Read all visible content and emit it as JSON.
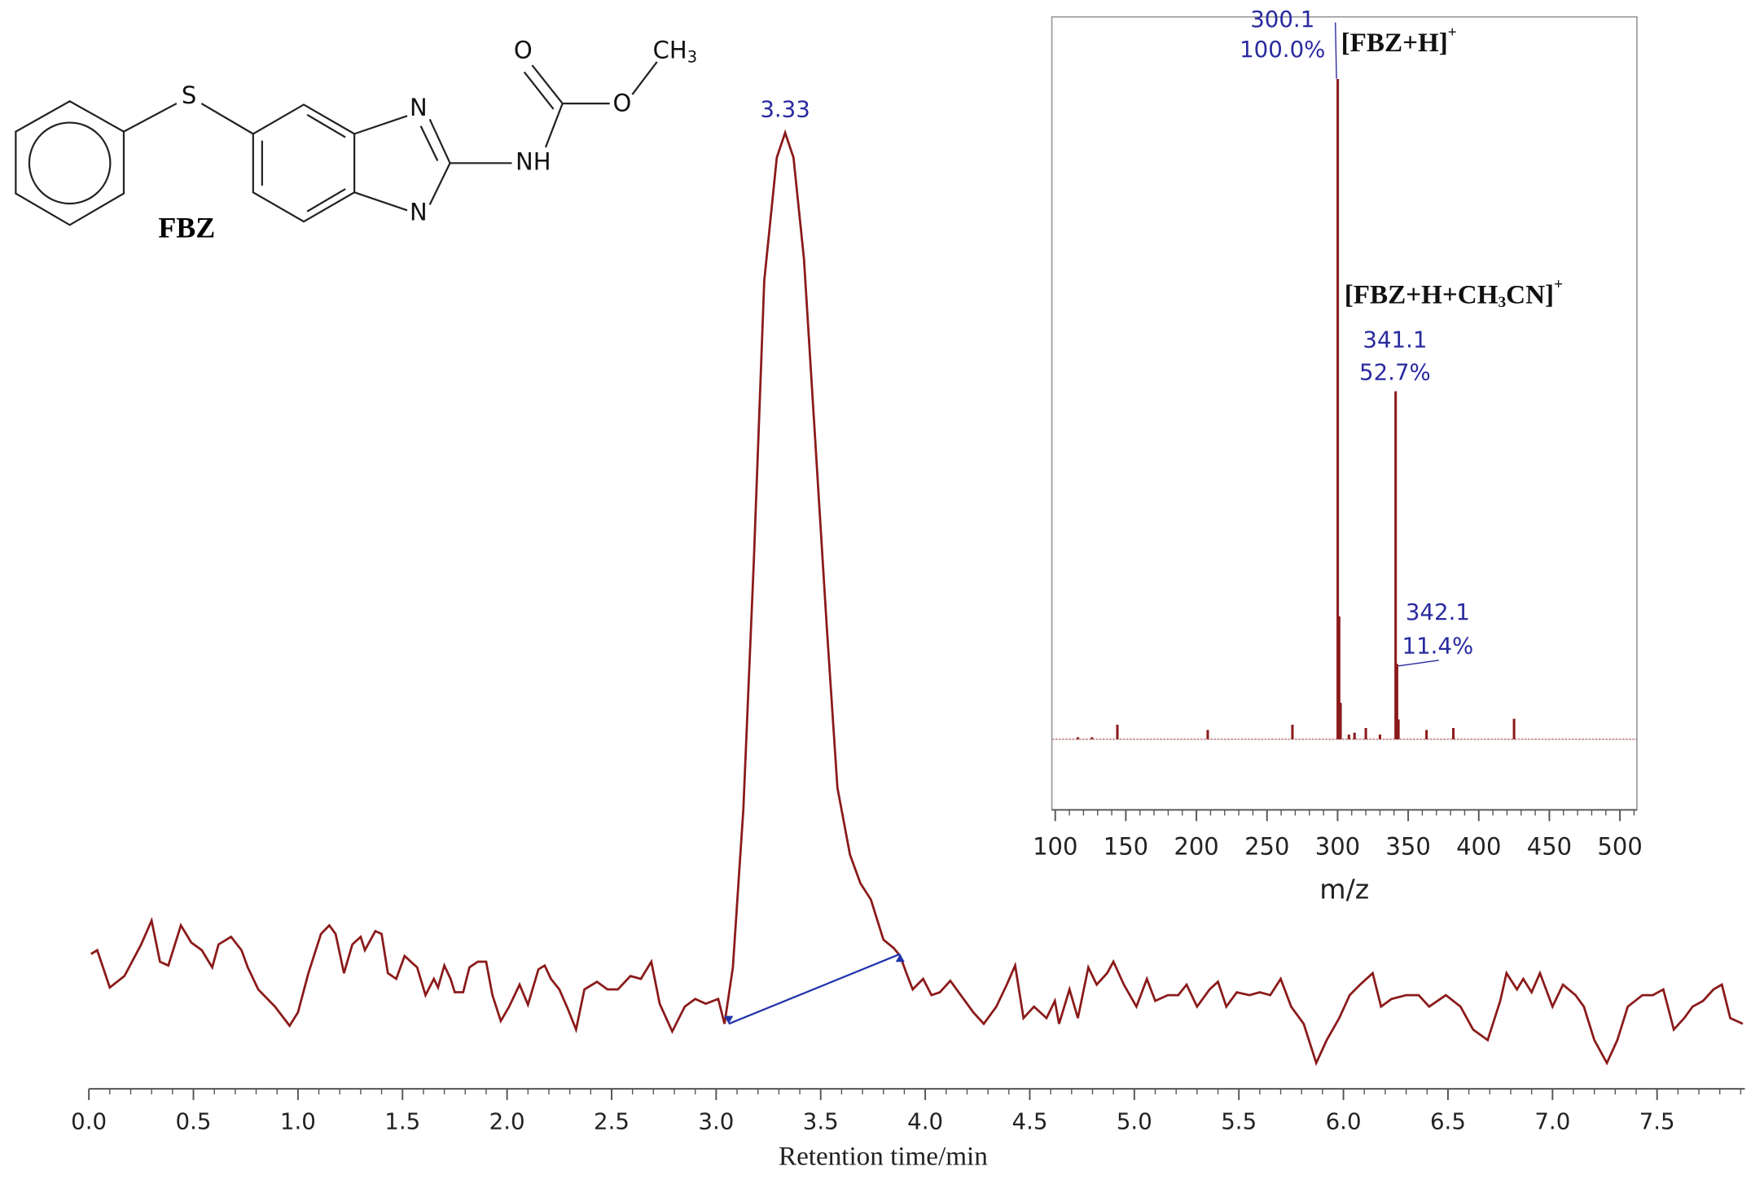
{
  "chart_data": [
    {
      "type": "line",
      "xlabel": "Retention time/min",
      "xlim": [
        0,
        7.92
      ],
      "ylim": [
        0,
        100
      ],
      "xminor": 0.1,
      "xticks": [
        {
          "value": 0,
          "label": "0.0"
        },
        0.5,
        {
          "value": 1,
          "label": "1.0"
        },
        1.5,
        {
          "value": 2,
          "label": "2.0"
        },
        2.5,
        {
          "value": 3,
          "label": "3.0"
        },
        3.5,
        {
          "value": 4,
          "label": "4.0"
        },
        4.5,
        {
          "value": 5,
          "label": "5.0"
        },
        5.5,
        {
          "value": 6,
          "label": "6.0"
        },
        6.5,
        {
          "value": 7,
          "label": "7.0"
        },
        7.5
      ],
      "peak_index": 74,
      "series": [
        {
          "color": "#8b1a1a",
          "x": [
            0.01,
            0.04,
            0.1,
            0.17,
            0.25,
            0.3,
            0.34,
            0.38,
            0.44,
            0.49,
            0.54,
            0.59,
            0.62,
            0.68,
            0.73,
            0.76,
            0.81,
            0.89,
            0.96,
            1.0,
            1.05,
            1.11,
            1.15,
            1.18,
            1.22,
            1.26,
            1.3,
            1.32,
            1.37,
            1.4,
            1.43,
            1.47,
            1.51,
            1.57,
            1.61,
            1.65,
            1.67,
            1.7,
            1.73,
            1.75,
            1.79,
            1.82,
            1.86,
            1.9,
            1.93,
            1.97,
            2.01,
            2.06,
            2.1,
            2.15,
            2.18,
            2.21,
            2.25,
            2.29,
            2.33,
            2.37,
            2.43,
            2.48,
            2.53,
            2.59,
            2.64,
            2.69,
            2.73,
            2.79,
            2.85,
            2.9,
            2.95,
            3.01,
            3.04,
            3.08,
            3.13,
            3.18,
            3.23,
            3.29,
            3.33,
            3.37,
            3.42,
            3.47,
            3.53,
            3.58,
            3.64,
            3.69,
            3.74,
            3.8,
            3.85,
            3.88,
            3.91,
            3.94,
            3.99,
            4.03,
            4.07,
            4.12,
            4.17,
            4.23,
            4.28,
            4.34,
            4.39,
            4.43,
            4.47,
            4.52,
            4.58,
            4.62,
            4.64,
            4.69,
            4.73,
            4.78,
            4.82,
            4.87,
            4.9,
            4.95,
            5.01,
            5.06,
            5.1,
            5.16,
            5.21,
            5.25,
            5.3,
            5.36,
            5.4,
            5.44,
            5.49,
            5.55,
            5.6,
            5.65,
            5.7,
            5.75,
            5.81,
            5.87,
            5.92,
            5.98,
            6.03,
            6.08,
            6.14,
            6.18,
            6.23,
            6.3,
            6.36,
            6.41,
            6.49,
            6.56,
            6.62,
            6.69,
            6.75,
            6.78,
            6.83,
            6.86,
            6.9,
            6.94,
            7.0,
            7.05,
            7.11,
            7.15,
            7.2,
            7.26,
            7.31,
            7.36,
            7.43,
            7.48,
            7.53,
            7.58,
            7.63,
            7.67,
            7.72,
            7.77,
            7.81,
            7.85,
            7.91
          ],
          "values": [
            14.1,
            14.5,
            10.6,
            11.8,
            15.1,
            17.6,
            13.3,
            12.9,
            17.1,
            15.3,
            14.5,
            12.7,
            15.1,
            15.9,
            14.5,
            12.7,
            10.4,
            8.6,
            6.6,
            8.0,
            12.1,
            16.2,
            17.1,
            16.2,
            12.1,
            15.1,
            15.9,
            14.5,
            16.5,
            16.2,
            12.1,
            11.5,
            13.9,
            12.7,
            9.8,
            11.5,
            10.6,
            12.9,
            11.5,
            10.1,
            10.1,
            12.7,
            13.3,
            13.3,
            9.8,
            7.1,
            8.6,
            10.9,
            8.8,
            12.5,
            12.9,
            11.5,
            10.4,
            8.4,
            6.2,
            10.4,
            11.2,
            10.4,
            10.4,
            11.8,
            11.5,
            13.3,
            8.9,
            6.0,
            8.6,
            9.4,
            8.9,
            9.4,
            6.8,
            12.7,
            29.2,
            55.1,
            84.5,
            97.4,
            100,
            97.4,
            86.8,
            69.2,
            48.0,
            31.5,
            24.5,
            21.5,
            19.8,
            15.6,
            14.7,
            13.9,
            12.1,
            10.4,
            11.5,
            9.8,
            10.1,
            11.3,
            9.8,
            8.0,
            6.8,
            8.6,
            10.9,
            12.9,
            7.4,
            8.6,
            7.4,
            9.2,
            6.8,
            10.4,
            7.4,
            12.7,
            10.9,
            12.1,
            13.3,
            10.9,
            8.6,
            11.5,
            9.2,
            9.8,
            9.8,
            10.9,
            8.6,
            10.4,
            11.2,
            8.6,
            10.1,
            9.8,
            10.1,
            9.8,
            11.5,
            8.6,
            6.8,
            2.7,
            5.1,
            7.4,
            9.8,
            10.9,
            12.1,
            8.6,
            9.4,
            9.8,
            9.8,
            8.6,
            9.8,
            8.6,
            6.2,
            5.1,
            9.2,
            12.1,
            10.4,
            11.5,
            10.1,
            12.1,
            8.6,
            10.9,
            9.8,
            8.6,
            5.1,
            2.7,
            5.1,
            8.6,
            9.8,
            9.8,
            10.4,
            6.2,
            7.4,
            8.6,
            9.2,
            10.4,
            10.9,
            7.4,
            6.8
          ]
        }
      ],
      "integration_baseline": {
        "color": "#2233aa",
        "x": [
          3.06,
          3.88
        ],
        "values": [
          6.8,
          14.1
        ]
      }
    },
    {
      "type": "stem",
      "xlabel": "m/z",
      "xlim": [
        97.6,
        512
      ],
      "ylim": [
        -10.7,
        109.4
      ],
      "xminor": 10,
      "xticks": [
        100,
        150,
        200,
        250,
        300,
        350,
        400,
        450,
        500
      ],
      "color": "#8b1a1a",
      "label_color": "#2a2aa0",
      "x": [
        116,
        126,
        144,
        208,
        268,
        300.1,
        301.1,
        302.1,
        308,
        312,
        320,
        330,
        341.1,
        342.1,
        343.1,
        363,
        382,
        425
      ],
      "values": [
        0.3,
        0.3,
        2.2,
        1.4,
        2.2,
        100,
        18.6,
        5.5,
        0.7,
        1,
        1.7,
        0.7,
        52.7,
        11.4,
        3,
        1.4,
        1.7,
        3.1
      ],
      "value_labels": [
        null,
        null,
        null,
        null,
        null,
        "100.0%",
        null,
        null,
        null,
        null,
        null,
        null,
        "52.7%",
        "11.4%",
        null,
        null,
        null,
        null
      ],
      "annotations": [
        [
          {
            "text": "[FBZ+H]"
          },
          {
            "sup": "+"
          }
        ],
        [
          {
            "text": "[FBZ+H+CH"
          },
          {
            "sub": "3"
          },
          {
            "text": "CN]"
          },
          {
            "sup": "+"
          }
        ]
      ]
    }
  ],
  "structure": {
    "name": "FBZ",
    "atoms": [
      "S",
      "N",
      "N",
      "NH",
      "O",
      "O"
    ],
    "methyl": {
      "text": "CH",
      "sub": "3"
    }
  }
}
